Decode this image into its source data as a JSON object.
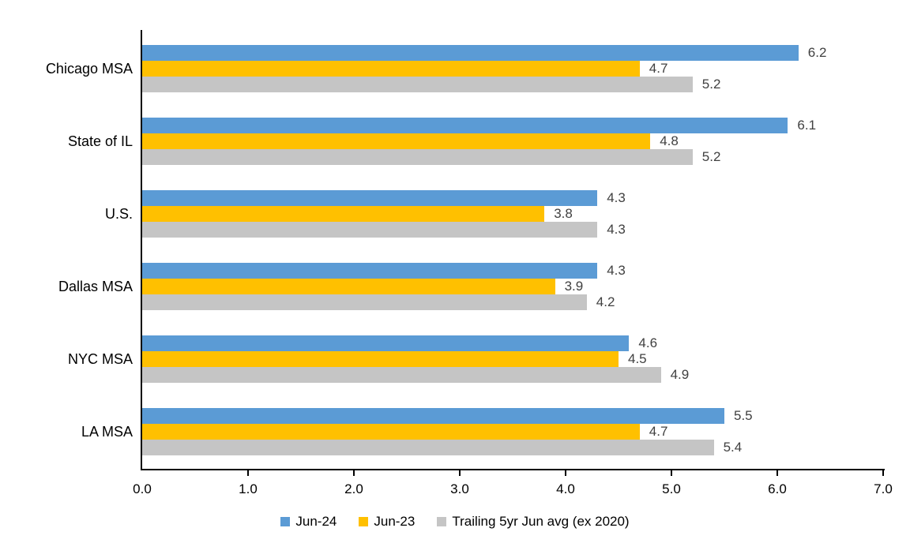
{
  "chart_data": {
    "type": "bar",
    "orientation": "horizontal",
    "title": "",
    "xlabel": "",
    "ylabel": "",
    "categories": [
      "Chicago MSA",
      "State of IL",
      "U.S.",
      "Dallas MSA",
      "NYC MSA",
      "LA MSA"
    ],
    "series": [
      {
        "name": "Jun-24",
        "color": "#5B9BD5",
        "values": [
          6.2,
          6.1,
          4.3,
          4.3,
          4.6,
          5.5
        ]
      },
      {
        "name": "Jun-23",
        "color": "#FFC000",
        "values": [
          4.7,
          4.8,
          3.8,
          3.9,
          4.5,
          4.7
        ]
      },
      {
        "name": "Trailing 5yr Jun avg (ex 2020)",
        "color": "#C5C5C5",
        "values": [
          5.2,
          5.2,
          4.3,
          4.2,
          4.9,
          5.4
        ]
      }
    ],
    "data_labels": {
      "Jun-24": [
        "6.2",
        "6.1",
        "4.3",
        "4.3",
        "4.6",
        "5.5"
      ],
      "Jun-23": [
        "4.7",
        "4.8",
        "3.8",
        "3.9",
        "4.5",
        "4.7"
      ],
      "Trailing 5yr Jun avg (ex 2020)": [
        "5.2",
        "5.2",
        "4.3",
        "4.2",
        "4.9",
        "5.4"
      ]
    },
    "xlim": [
      0.0,
      7.0
    ],
    "x_ticks": [
      "0.0",
      "1.0",
      "2.0",
      "3.0",
      "4.0",
      "5.0",
      "6.0",
      "7.0"
    ],
    "grid": false,
    "legend_position": "bottom",
    "legend_entries": [
      "Jun-24",
      "Jun-23",
      "Trailing 5yr Jun avg (ex 2020)"
    ]
  },
  "colors": {
    "axis": "#000000",
    "data_label_text": "#404040",
    "category_label_text": "#000000",
    "tick_label_text": "#000000",
    "background": "#FFFFFF"
  }
}
